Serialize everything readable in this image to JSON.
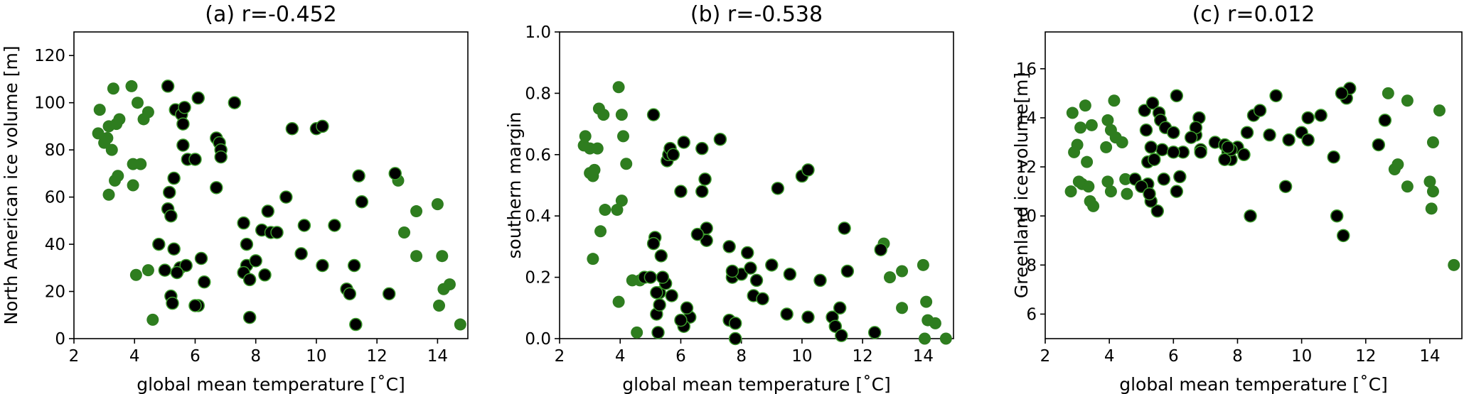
{
  "figure": {
    "colors": {
      "green": "#2e7d1f",
      "black": "#000000",
      "black_edge": "#3a9a2a"
    }
  },
  "chart_data": [
    {
      "type": "scatter",
      "title": "(a) r=-0.452",
      "xlabel": "global mean temperature [˚C]",
      "ylabel": "North American ice volume [m]",
      "xlim": [
        2,
        15
      ],
      "ylim": [
        0,
        130
      ],
      "xticks": [
        "2",
        "4",
        "6",
        "8",
        "10",
        "12",
        "14"
      ],
      "yticks": [
        "0",
        "20",
        "40",
        "60",
        "80",
        "100",
        "120"
      ],
      "grid": false,
      "series": [
        {
          "color": "green",
          "x": [
            2.8,
            2.85,
            3.0,
            3.1,
            3.15,
            3.25,
            3.3,
            3.4,
            3.5,
            3.35,
            3.45,
            3.9,
            3.95,
            4.1,
            4.2,
            4.3,
            4.45,
            4.05,
            3.95,
            4.45,
            4.6,
            12.7,
            12.9,
            13.3,
            14.0,
            13.3,
            14.15,
            14.2,
            14.4,
            14.05,
            14.75,
            3.15
          ],
          "y": [
            87,
            97,
            83,
            85,
            90,
            80,
            106,
            91,
            93,
            67,
            69,
            107,
            65,
            100,
            74,
            93,
            96,
            27,
            74,
            29,
            8,
            67,
            45,
            54,
            57,
            35,
            35,
            21,
            23,
            14,
            6,
            61
          ]
        },
        {
          "color": "black",
          "x": [
            5.1,
            5.35,
            5.55,
            5.6,
            5.6,
            5.65,
            5.75,
            6.1,
            6.0,
            6.7,
            6.8,
            6.85,
            6.85,
            6.7,
            7.3,
            5.15,
            5.1,
            5.3,
            4.8,
            5.2,
            5.5,
            5.7,
            6.3,
            6.2,
            6.1,
            6.0,
            7.6,
            7.7,
            7.8,
            8.0,
            8.2,
            8.4,
            8.5,
            8.7,
            9.0,
            9.2,
            9.5,
            9.6,
            10.0,
            10.2,
            10.6,
            10.2,
            11.0,
            11.1,
            11.3,
            11.4,
            11.5,
            11.25,
            12.4,
            12.6,
            5.2,
            5.0,
            5.3,
            5.25,
            7.6,
            7.8,
            7.7,
            8.3,
            5.4
          ],
          "y": [
            107,
            97,
            95,
            91,
            82,
            98,
            76,
            102,
            76,
            85,
            83,
            80,
            77,
            64,
            100,
            62,
            55,
            68,
            40,
            52,
            30,
            31,
            24,
            34,
            14,
            14,
            49,
            31,
            9,
            33,
            46,
            54,
            45,
            45,
            60,
            89,
            36,
            48,
            89,
            90,
            48,
            31,
            21,
            19,
            6,
            69,
            58,
            31,
            19,
            70,
            18,
            29,
            38,
            15,
            28,
            25,
            40,
            27,
            28
          ]
        }
      ]
    },
    {
      "type": "scatter",
      "title": "(b) r=-0.538",
      "xlabel": "global mean temperature [˚C]",
      "ylabel": "southern margin",
      "xlim": [
        2,
        15
      ],
      "ylim": [
        0.0,
        1.0
      ],
      "xticks": [
        "2",
        "4",
        "6",
        "8",
        "10",
        "12",
        "14"
      ],
      "yticks": [
        "0.0",
        "0.2",
        "0.4",
        "0.6",
        "0.8",
        "1.0"
      ],
      "grid": false,
      "series": [
        {
          "color": "green",
          "x": [
            2.8,
            2.85,
            3.0,
            3.1,
            3.15,
            3.25,
            3.3,
            3.45,
            3.5,
            3.35,
            3.95,
            4.05,
            4.1,
            4.2,
            3.9,
            4.4,
            4.05,
            3.95,
            4.55,
            4.65,
            12.7,
            12.9,
            13.3,
            14.0,
            14.1,
            13.3,
            14.15,
            14.4,
            14.05,
            14.75,
            3.1,
            3.0
          ],
          "y": [
            0.63,
            0.66,
            0.62,
            0.53,
            0.55,
            0.62,
            0.75,
            0.73,
            0.42,
            0.35,
            0.82,
            0.73,
            0.66,
            0.57,
            0.42,
            0.19,
            0.45,
            0.12,
            0.02,
            0.19,
            0.31,
            0.2,
            0.22,
            0.24,
            0.12,
            0.1,
            0.06,
            0.05,
            0.0,
            0.0,
            0.26,
            0.54
          ]
        },
        {
          "color": "black",
          "x": [
            5.1,
            5.35,
            5.55,
            5.6,
            5.65,
            5.75,
            6.1,
            6.0,
            6.7,
            6.8,
            6.85,
            6.85,
            6.7,
            7.3,
            5.15,
            5.1,
            5.3,
            4.8,
            5.2,
            5.5,
            5.7,
            6.3,
            6.2,
            6.1,
            6.0,
            7.6,
            7.7,
            7.8,
            8.0,
            8.2,
            8.4,
            8.5,
            8.7,
            9.0,
            9.2,
            9.5,
            9.6,
            10.0,
            10.2,
            10.6,
            10.2,
            11.0,
            11.1,
            11.3,
            11.4,
            11.5,
            11.25,
            12.4,
            12.6,
            5.2,
            5.0,
            5.3,
            5.25,
            7.6,
            7.8,
            7.7,
            8.3,
            5.4,
            6.55
          ],
          "y": [
            0.73,
            0.27,
            0.58,
            0.6,
            0.62,
            0.6,
            0.64,
            0.48,
            0.62,
            0.52,
            0.36,
            0.32,
            0.48,
            0.65,
            0.33,
            0.31,
            0.15,
            0.2,
            0.08,
            0.18,
            0.14,
            0.07,
            0.1,
            0.04,
            0.06,
            0.3,
            0.2,
            0.0,
            0.21,
            0.28,
            0.14,
            0.19,
            0.13,
            0.24,
            0.49,
            0.08,
            0.21,
            0.53,
            0.55,
            0.19,
            0.07,
            0.07,
            0.04,
            0.01,
            0.36,
            0.22,
            0.1,
            0.02,
            0.29,
            0.15,
            0.2,
            0.11,
            0.02,
            0.06,
            0.05,
            0.22,
            0.23,
            0.2,
            0.34
          ]
        }
      ]
    },
    {
      "type": "scatter",
      "title": "(c) r=0.012",
      "xlabel": "global mean temperature [˚C]",
      "ylabel": "Greenland ice volume[m]",
      "xlim": [
        2,
        15
      ],
      "ylim": [
        5,
        17.5
      ],
      "xticks": [
        "2",
        "4",
        "6",
        "8",
        "10",
        "12",
        "14"
      ],
      "yticks": [
        "6",
        "8",
        "10",
        "12",
        "14",
        "16"
      ],
      "grid": false,
      "series": [
        {
          "color": "green",
          "x": [
            2.8,
            2.85,
            2.9,
            3.0,
            3.1,
            3.15,
            3.25,
            3.3,
            3.4,
            3.45,
            3.5,
            3.35,
            3.95,
            3.9,
            4.05,
            4.15,
            4.2,
            4.4,
            4.5,
            4.55,
            4.05,
            3.95,
            12.7,
            12.9,
            13.0,
            13.3,
            13.3,
            14.0,
            14.1,
            14.1,
            14.3,
            14.05,
            14.75,
            3.05
          ],
          "y": [
            11.0,
            14.2,
            12.6,
            12.9,
            13.6,
            11.3,
            14.5,
            12.2,
            10.6,
            13.7,
            10.4,
            11.2,
            13.9,
            12.8,
            13.5,
            14.7,
            13.2,
            13.0,
            11.5,
            10.9,
            11.0,
            11.4,
            15.0,
            11.9,
            12.1,
            14.7,
            11.2,
            11.4,
            13.0,
            11.0,
            14.3,
            10.3,
            8.0,
            11.4
          ]
        },
        {
          "color": "black",
          "x": [
            5.1,
            5.35,
            5.55,
            5.6,
            5.65,
            5.75,
            6.1,
            6.0,
            6.7,
            6.8,
            6.85,
            6.85,
            6.7,
            7.3,
            5.15,
            5.1,
            5.3,
            4.8,
            5.2,
            5.5,
            5.7,
            6.3,
            6.2,
            6.1,
            6.0,
            7.6,
            7.7,
            7.8,
            8.0,
            8.2,
            8.4,
            8.5,
            8.7,
            9.0,
            9.2,
            9.5,
            9.6,
            10.0,
            10.2,
            10.6,
            10.2,
            11.0,
            11.1,
            11.3,
            11.4,
            11.5,
            11.25,
            12.4,
            12.6,
            5.2,
            5.0,
            5.3,
            5.25,
            7.6,
            7.8,
            7.7,
            8.3,
            5.4,
            6.55
          ],
          "y": [
            14.3,
            14.6,
            14.2,
            13.9,
            12.7,
            13.6,
            14.9,
            13.4,
            13.3,
            14.0,
            12.7,
            12.6,
            13.6,
            13.0,
            13.5,
            11.2,
            12.8,
            11.5,
            12.2,
            10.2,
            11.5,
            12.6,
            11.6,
            11.0,
            12.6,
            12.9,
            12.6,
            12.3,
            12.8,
            12.5,
            10.0,
            14.1,
            14.3,
            13.3,
            14.9,
            11.2,
            13.1,
            13.4,
            14.0,
            14.1,
            13.1,
            12.4,
            10.0,
            9.2,
            14.8,
            15.2,
            15.0,
            12.9,
            13.9,
            11.3,
            11.2,
            10.6,
            10.9,
            12.3,
            12.7,
            12.8,
            13.4,
            12.3,
            13.2
          ]
        }
      ]
    }
  ]
}
